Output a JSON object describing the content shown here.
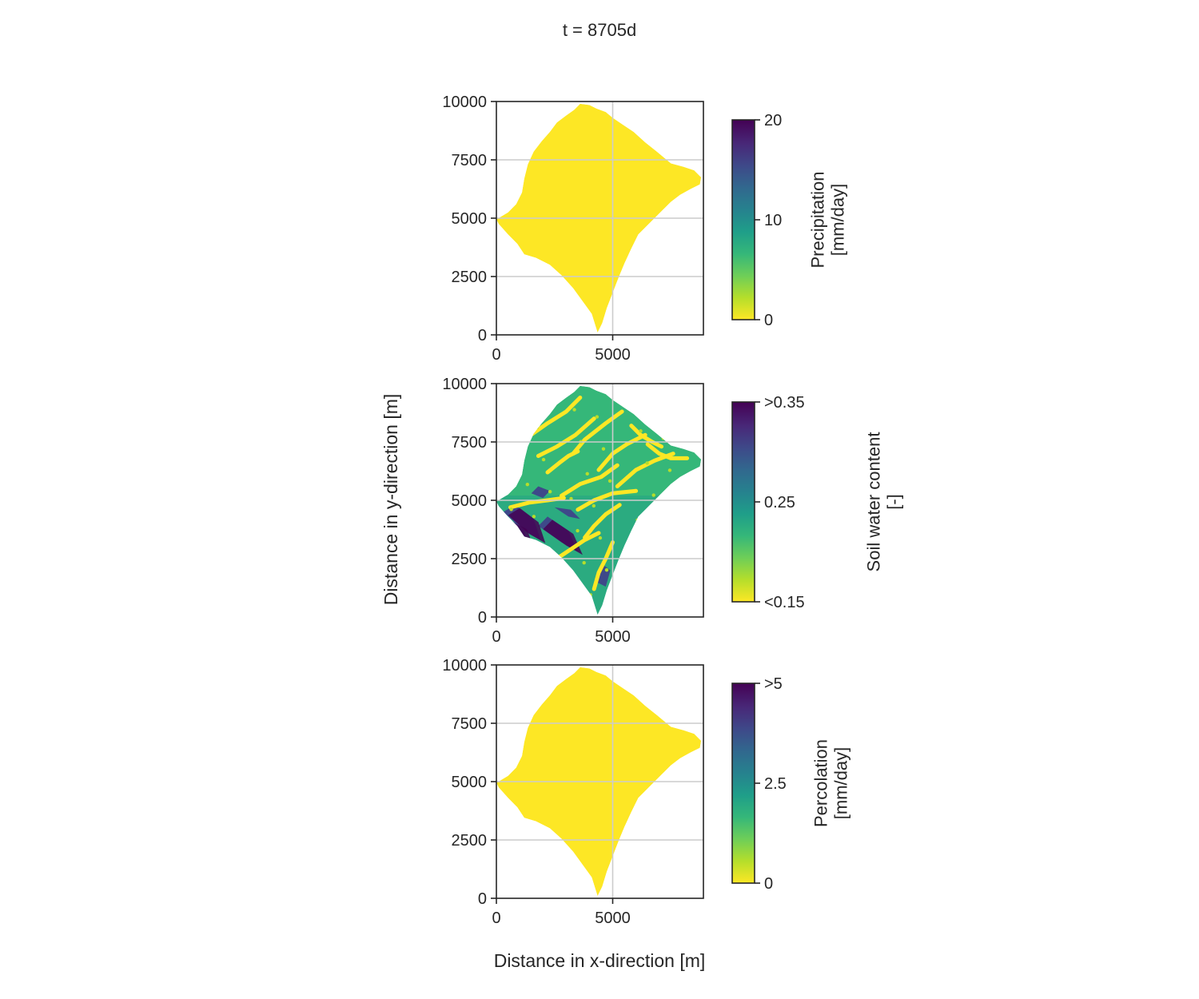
{
  "figure": {
    "suptitle": "t = 8705d",
    "xlabel": "Distance in x-direction [m]",
    "ylabel": "Distance in y-direction [m]"
  },
  "colors": {
    "viridis": [
      "#fde725",
      "#b5de2b",
      "#6ece58",
      "#35b779",
      "#1f9e89",
      "#26828e",
      "#31688e",
      "#3e4989",
      "#482878",
      "#440154"
    ],
    "grid": "#cccccc",
    "axes": "#262626"
  },
  "chart_data": [
    {
      "type": "heatmap",
      "name": "precipitation-map",
      "xlim": [
        0,
        8900
      ],
      "ylim": [
        0,
        10000
      ],
      "xticks": [
        "0",
        "5000"
      ],
      "xtick_values": [
        0,
        5000
      ],
      "yticks": [
        "0",
        "2500",
        "5000",
        "7500",
        "10000"
      ],
      "ytick_values": [
        0,
        2500,
        5000,
        7500,
        10000
      ],
      "grid": true,
      "field": "uniform minimum (0 mm/day) over whole catchment",
      "colorbar": {
        "label": [
          "Precipitation",
          "[mm/day]"
        ],
        "range": [
          0,
          20
        ],
        "ticks": [
          "0",
          "10",
          "20"
        ],
        "tick_values": [
          0,
          10,
          20
        ],
        "colormap": "viridis_r"
      }
    },
    {
      "type": "heatmap",
      "name": "soil-water-content-map",
      "xlim": [
        0,
        8900
      ],
      "ylim": [
        0,
        10000
      ],
      "xticks": [
        "0",
        "5000"
      ],
      "xtick_values": [
        0,
        5000
      ],
      "yticks": [
        "0",
        "2500",
        "5000",
        "7500",
        "10000"
      ],
      "yticks_values": [
        0,
        2500,
        5000,
        7500,
        10000
      ],
      "ytick_values": [
        0,
        2500,
        5000,
        7500,
        10000
      ],
      "grid": true,
      "field": "spatially variable, mostly ~0.22-0.25 with dry channels (<0.15) and wet patches (>0.35) in south-west",
      "colorbar": {
        "label": [
          "Soil water content",
          "[-]"
        ],
        "range": [
          0.15,
          0.35
        ],
        "ticks": [
          "<0.15",
          "0.25",
          ">0.35"
        ],
        "tick_values": [
          0.15,
          0.25,
          0.35
        ],
        "colormap": "viridis_r"
      }
    },
    {
      "type": "heatmap",
      "name": "percolation-map",
      "xlim": [
        0,
        8900
      ],
      "ylim": [
        0,
        10000
      ],
      "xticks": [
        "0",
        "5000"
      ],
      "xtick_values": [
        0,
        5000
      ],
      "yticks": [
        "0",
        "2500",
        "5000",
        "7500",
        "10000"
      ],
      "ytick_values": [
        0,
        2500,
        5000,
        7500,
        10000
      ],
      "grid": true,
      "field": "uniform minimum (0 mm/day) over whole catchment",
      "colorbar": {
        "label": [
          "Percolation",
          "[mm/day]"
        ],
        "range": [
          0,
          5
        ],
        "ticks": [
          "0",
          "2.5",
          ">5"
        ],
        "tick_values": [
          0,
          2.5,
          5
        ],
        "colormap": "viridis_r"
      }
    }
  ],
  "catchment_outline_xy": [
    [
      4350,
      100
    ],
    [
      4100,
      900
    ],
    [
      3700,
      1450
    ],
    [
      3300,
      2000
    ],
    [
      2800,
      2550
    ],
    [
      2300,
      3000
    ],
    [
      1700,
      3300
    ],
    [
      1200,
      3450
    ],
    [
      900,
      3900
    ],
    [
      500,
      4300
    ],
    [
      100,
      4750
    ],
    [
      0,
      4950
    ],
    [
      500,
      5250
    ],
    [
      850,
      5600
    ],
    [
      1100,
      6100
    ],
    [
      1200,
      6700
    ],
    [
      1350,
      7300
    ],
    [
      1600,
      7850
    ],
    [
      1950,
      8300
    ],
    [
      2300,
      8700
    ],
    [
      2600,
      9100
    ],
    [
      3000,
      9400
    ],
    [
      3350,
      9650
    ],
    [
      3600,
      9900
    ],
    [
      4000,
      9850
    ],
    [
      4300,
      9700
    ],
    [
      4700,
      9550
    ],
    [
      5000,
      9300
    ],
    [
      5450,
      9000
    ],
    [
      5900,
      8700
    ],
    [
      6400,
      8250
    ],
    [
      6900,
      7850
    ],
    [
      7500,
      7350
    ],
    [
      8050,
      7200
    ],
    [
      8500,
      7050
    ],
    [
      8800,
      6750
    ],
    [
      8750,
      6450
    ],
    [
      8350,
      6250
    ],
    [
      7900,
      6000
    ],
    [
      7500,
      5700
    ],
    [
      7100,
      5300
    ],
    [
      6600,
      4800
    ],
    [
      6100,
      4300
    ],
    [
      5800,
      3700
    ],
    [
      5500,
      3050
    ],
    [
      5250,
      2450
    ],
    [
      5000,
      1800
    ],
    [
      4750,
      1150
    ],
    [
      4550,
      500
    ]
  ],
  "soil_patches": {
    "dry_channels": [
      [
        [
          1200,
          7600
        ],
        [
          2200,
          8300
        ],
        [
          3000,
          8800
        ],
        [
          3600,
          9400
        ]
      ],
      [
        [
          1800,
          6900
        ],
        [
          2600,
          7300
        ],
        [
          3400,
          7800
        ],
        [
          4200,
          8500
        ]
      ],
      [
        [
          3300,
          7000
        ],
        [
          3800,
          7600
        ],
        [
          4700,
          8300
        ],
        [
          5400,
          8800
        ]
      ],
      [
        [
          4400,
          6300
        ],
        [
          5000,
          7000
        ],
        [
          5600,
          7400
        ],
        [
          6400,
          7800
        ]
      ],
      [
        [
          5200,
          5600
        ],
        [
          6000,
          6300
        ],
        [
          6800,
          6700
        ],
        [
          7600,
          7000
        ]
      ],
      [
        [
          2800,
          5200
        ],
        [
          3600,
          5700
        ],
        [
          4500,
          6000
        ],
        [
          5200,
          6500
        ]
      ],
      [
        [
          3500,
          4600
        ],
        [
          4200,
          5000
        ],
        [
          5000,
          5300
        ],
        [
          6000,
          5400
        ]
      ],
      [
        [
          600,
          4700
        ],
        [
          1400,
          4900
        ],
        [
          2200,
          5000
        ],
        [
          2900,
          5100
        ]
      ],
      [
        [
          3800,
          3400
        ],
        [
          4200,
          3900
        ],
        [
          4700,
          4400
        ],
        [
          5300,
          4800
        ]
      ],
      [
        [
          2600,
          2500
        ],
        [
          3200,
          2900
        ],
        [
          3800,
          3300
        ],
        [
          4400,
          3600
        ]
      ],
      [
        [
          4200,
          1200
        ],
        [
          4400,
          1900
        ],
        [
          4700,
          2500
        ],
        [
          5000,
          3200
        ]
      ],
      [
        [
          1500,
          8000
        ],
        [
          1900,
          8600
        ],
        [
          2300,
          9000
        ],
        [
          2700,
          9300
        ]
      ],
      [
        [
          6500,
          7400
        ],
        [
          7000,
          7000
        ],
        [
          7500,
          6800
        ],
        [
          8200,
          6800
        ]
      ],
      [
        [
          2200,
          6200
        ],
        [
          2700,
          6600
        ],
        [
          3100,
          6900
        ],
        [
          3500,
          7100
        ]
      ],
      [
        [
          5800,
          8200
        ],
        [
          6200,
          7800
        ],
        [
          6700,
          7500
        ],
        [
          7100,
          7300
        ]
      ]
    ],
    "wet_patches": [
      [
        [
          300,
          4500
        ],
        [
          1200,
          3700
        ],
        [
          1900,
          3300
        ],
        [
          1600,
          4200
        ],
        [
          800,
          4800
        ]
      ],
      [
        [
          1800,
          3900
        ],
        [
          2800,
          3200
        ],
        [
          3500,
          2800
        ],
        [
          3100,
          3700
        ],
        [
          2200,
          4300
        ]
      ],
      [
        [
          500,
          4200
        ],
        [
          900,
          3600
        ],
        [
          1300,
          3400
        ],
        [
          1100,
          3900
        ]
      ],
      [
        [
          2500,
          4700
        ],
        [
          3100,
          4300
        ],
        [
          3600,
          4200
        ],
        [
          3200,
          4600
        ]
      ],
      [
        [
          4300,
          1500
        ],
        [
          4700,
          1300
        ],
        [
          4900,
          2000
        ],
        [
          4500,
          2300
        ]
      ],
      [
        [
          1500,
          5300
        ],
        [
          2000,
          5100
        ],
        [
          2300,
          5400
        ],
        [
          1800,
          5600
        ]
      ]
    ]
  }
}
